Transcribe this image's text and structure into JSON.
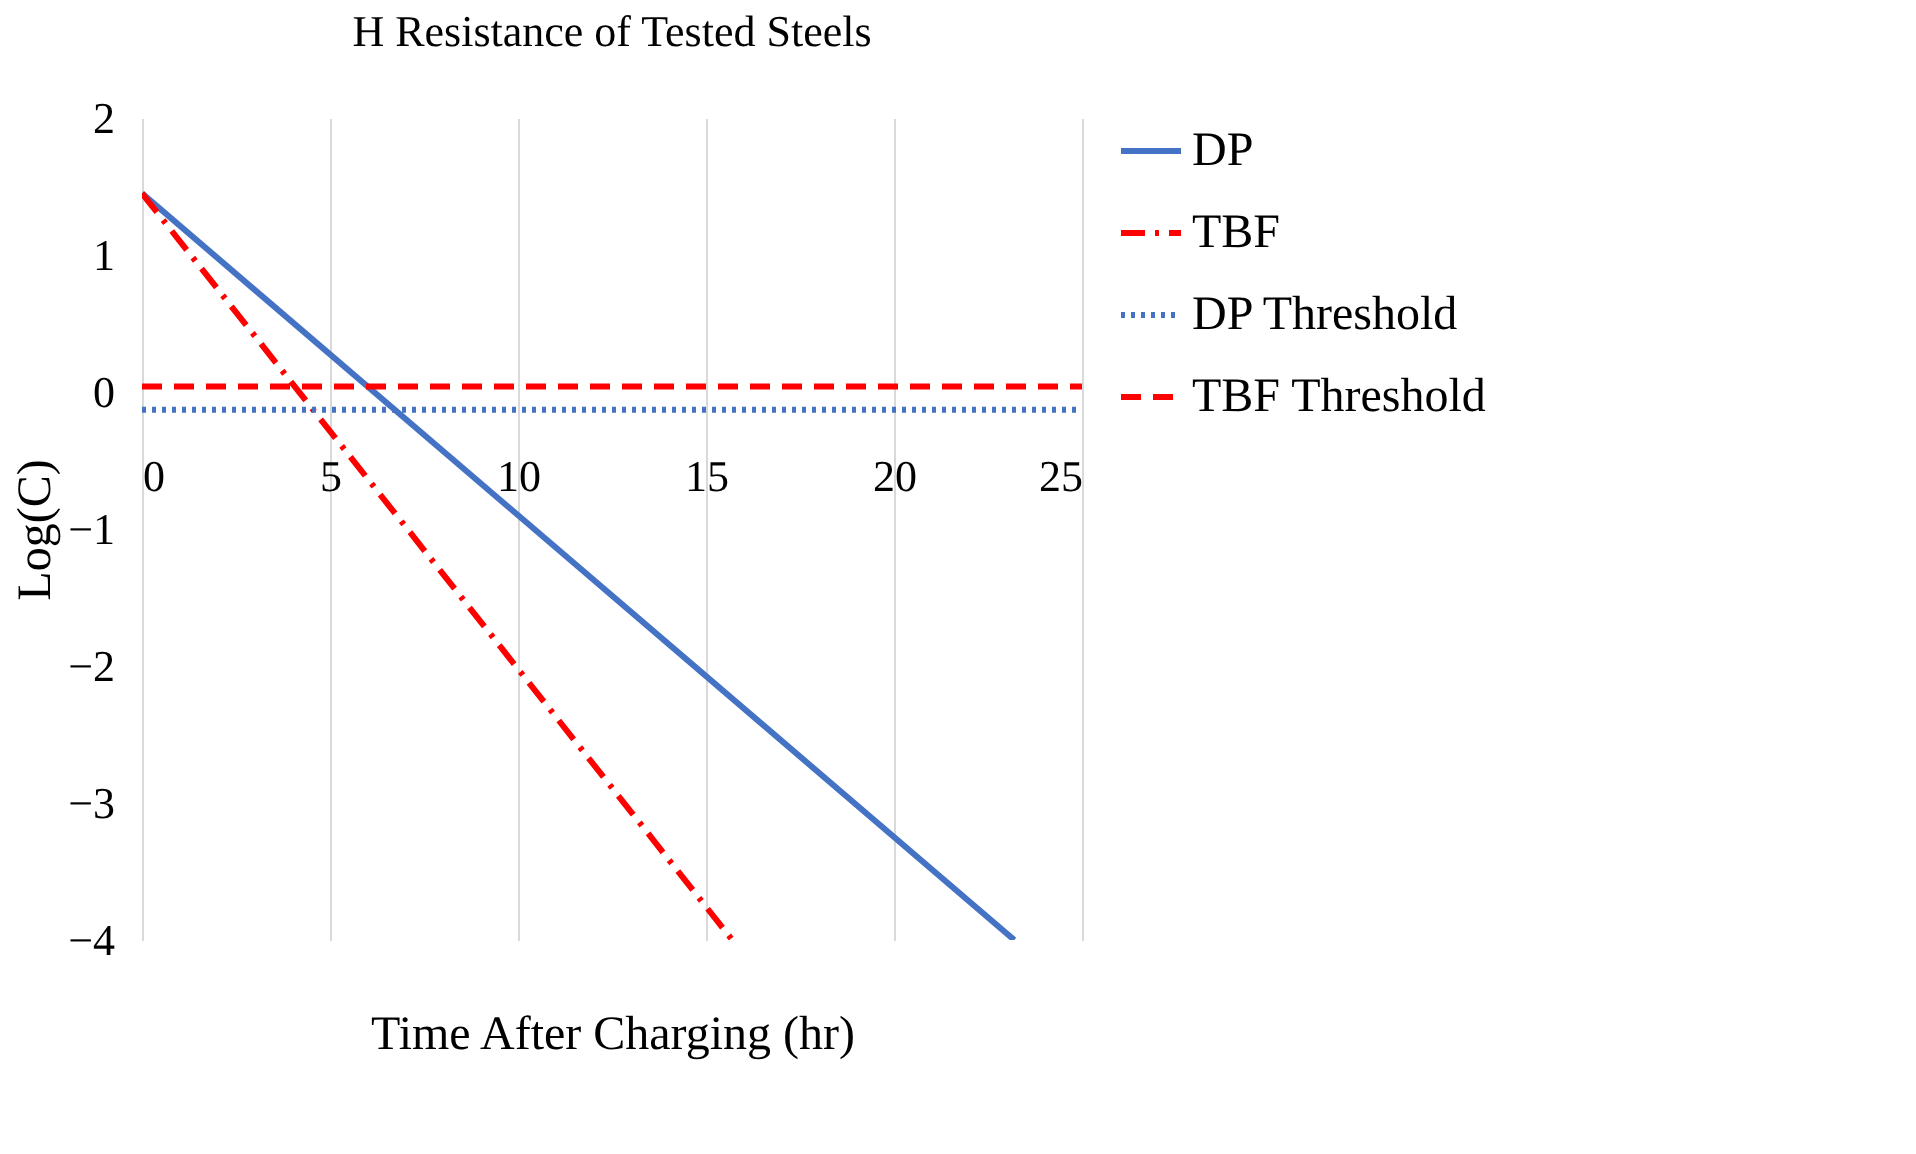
{
  "chart_data": {
    "type": "line",
    "title": "H Resistance of Tested Steels",
    "xlabel": "Time After Charging (hr)",
    "ylabel": "Log(C)",
    "xlim": [
      0,
      25
    ],
    "xticks": [
      0,
      5,
      10,
      15,
      20,
      25
    ],
    "ylim": [
      -4,
      2
    ],
    "yticks": [
      -4,
      -3,
      -2,
      -1,
      0,
      1,
      2
    ],
    "grid": "x",
    "legend": "right",
    "series": [
      {
        "name": "DP",
        "color": "#4472c4",
        "line_style": "solid",
        "x": [
          0,
          23.2
        ],
        "values": [
          1.45,
          -4
        ]
      },
      {
        "name": "TBF",
        "color": "#ff0000",
        "line_style": "dashdot",
        "x": [
          0,
          15.7
        ],
        "values": [
          1.45,
          -4
        ]
      },
      {
        "name": "DP Threshold",
        "color": "#4472c4",
        "line_style": "dotted",
        "x": [
          0,
          25
        ],
        "values": [
          -0.13,
          -0.13
        ]
      },
      {
        "name": "TBF Threshold",
        "color": "#ff0000",
        "line_style": "dashed",
        "x": [
          0,
          25
        ],
        "values": [
          0.04,
          0.04
        ]
      }
    ]
  }
}
